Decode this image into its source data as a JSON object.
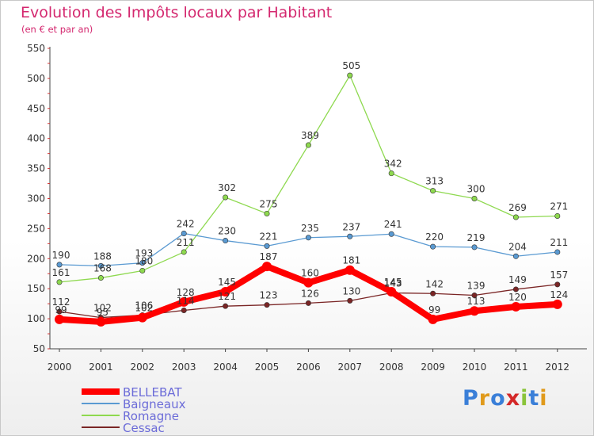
{
  "chart_data": {
    "type": "line",
    "title": "Evolution des Impôts locaux par Habitant",
    "subtitle": "(en € et par an)",
    "x": [
      "2000",
      "2001",
      "2002",
      "2003",
      "2004",
      "2005",
      "2006",
      "2007",
      "2008",
      "2009",
      "2010",
      "2011",
      "2012"
    ],
    "yticks": [
      50,
      100,
      150,
      200,
      250,
      300,
      350,
      400,
      450,
      500,
      550
    ],
    "ylim": [
      50,
      550
    ],
    "grid": false,
    "legend_position": "bottom-left",
    "series": [
      {
        "name": "BELLEBAT",
        "color": "#ff0000",
        "values": [
          99,
          95,
          102,
          128,
          145,
          187,
          160,
          181,
          145,
          99,
          113,
          120,
          124
        ]
      },
      {
        "name": "Baigneaux",
        "color": "#5a9ad2",
        "values": [
          190,
          188,
          193,
          242,
          230,
          221,
          235,
          237,
          241,
          220,
          219,
          204,
          211
        ]
      },
      {
        "name": "Romagne",
        "color": "#8ed94f",
        "values": [
          161,
          168,
          180,
          211,
          302,
          275,
          389,
          505,
          342,
          313,
          300,
          269,
          271
        ]
      },
      {
        "name": "Cessac",
        "color": "#7a2525",
        "values": [
          112,
          102,
          106,
          114,
          121,
          123,
          126,
          130,
          143,
          142,
          139,
          149,
          157
        ]
      }
    ]
  },
  "logo": {
    "text": "Proxiti",
    "colors": [
      "#3a7fd8",
      "#e09a1c",
      "#3a7fd8",
      "#d42828",
      "#8ac43a",
      "#3a7fd8",
      "#e09a1c"
    ]
  }
}
